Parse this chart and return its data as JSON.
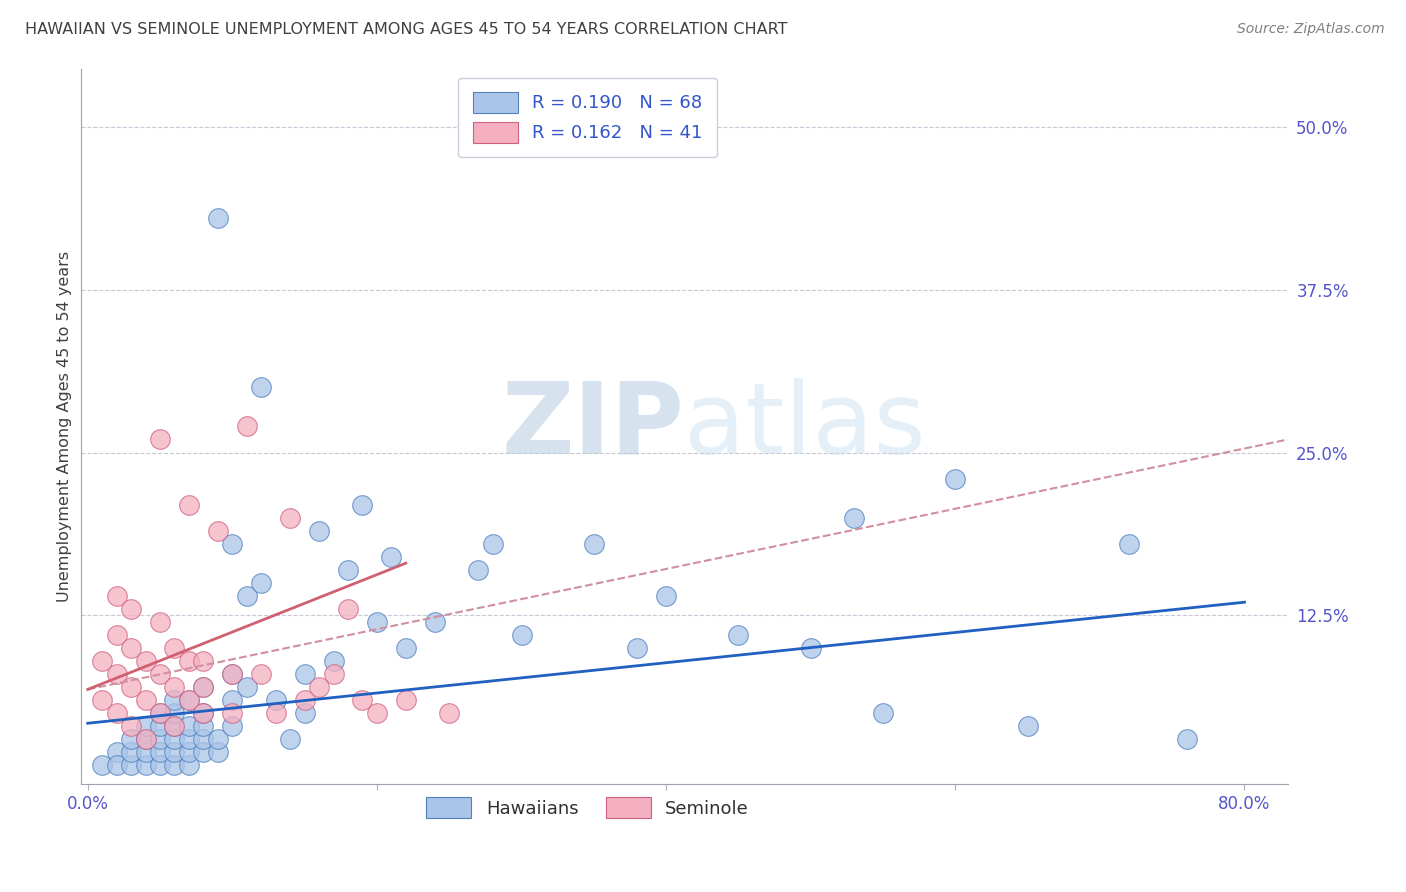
{
  "title": "HAWAIIAN VS SEMINOLE UNEMPLOYMENT AMONG AGES 45 TO 54 YEARS CORRELATION CHART",
  "source": "Source: ZipAtlas.com",
  "ylabel": "Unemployment Among Ages 45 to 54 years",
  "xlim": [
    -0.005,
    0.83
  ],
  "ylim": [
    -0.005,
    0.545
  ],
  "xtick_vals": [
    0.0,
    0.2,
    0.4,
    0.6,
    0.8
  ],
  "xtick_labels": [
    "0.0%",
    "",
    "",
    "",
    "80.0%"
  ],
  "ytick_vals": [
    0.5,
    0.375,
    0.25,
    0.125
  ],
  "ytick_labels": [
    "50.0%",
    "37.5%",
    "25.0%",
    "12.5%"
  ],
  "hawaiian_color": "#aac5e8",
  "hawaiian_edge_color": "#5080c0",
  "seminole_color": "#f4b0c0",
  "seminole_edge_color": "#d06080",
  "hawaiian_line_color": "#2060c0",
  "seminole_line_color": "#d06070",
  "seminole_dashed_color": "#d090a0",
  "title_color": "#404040",
  "source_color": "#808080",
  "watermark_color": "#ccdaee",
  "axis_label_color": "#404040",
  "tick_label_color": "#5555cc",
  "grid_color": "#c8c8d8",
  "legend_text_color": "#3355cc",
  "hawaiian_R": 0.19,
  "hawaiian_N": 68,
  "seminole_R": 0.162,
  "seminole_N": 41,
  "hawaiian_trend": [
    0.0,
    0.8,
    0.042,
    0.135
  ],
  "seminole_solid_trend": [
    0.0,
    0.22,
    0.068,
    0.165
  ],
  "seminole_dashed_trend": [
    0.0,
    0.83,
    0.068,
    0.26
  ],
  "hawaiian_x": [
    0.01,
    0.02,
    0.02,
    0.03,
    0.03,
    0.03,
    0.04,
    0.04,
    0.04,
    0.04,
    0.05,
    0.05,
    0.05,
    0.05,
    0.05,
    0.06,
    0.06,
    0.06,
    0.06,
    0.06,
    0.06,
    0.07,
    0.07,
    0.07,
    0.07,
    0.07,
    0.08,
    0.08,
    0.08,
    0.08,
    0.08,
    0.09,
    0.09,
    0.09,
    0.1,
    0.1,
    0.1,
    0.1,
    0.11,
    0.11,
    0.12,
    0.12,
    0.13,
    0.14,
    0.15,
    0.15,
    0.16,
    0.17,
    0.18,
    0.19,
    0.2,
    0.21,
    0.22,
    0.24,
    0.27,
    0.28,
    0.3,
    0.35,
    0.38,
    0.4,
    0.45,
    0.5,
    0.53,
    0.55,
    0.6,
    0.65,
    0.72,
    0.76
  ],
  "hawaiian_y": [
    0.01,
    0.02,
    0.01,
    0.01,
    0.02,
    0.03,
    0.01,
    0.02,
    0.03,
    0.04,
    0.01,
    0.02,
    0.03,
    0.04,
    0.05,
    0.01,
    0.02,
    0.03,
    0.04,
    0.05,
    0.06,
    0.01,
    0.02,
    0.03,
    0.04,
    0.06,
    0.02,
    0.03,
    0.04,
    0.05,
    0.07,
    0.02,
    0.03,
    0.43,
    0.04,
    0.06,
    0.08,
    0.18,
    0.07,
    0.14,
    0.15,
    0.3,
    0.06,
    0.03,
    0.05,
    0.08,
    0.19,
    0.09,
    0.16,
    0.21,
    0.12,
    0.17,
    0.1,
    0.12,
    0.16,
    0.18,
    0.11,
    0.18,
    0.1,
    0.14,
    0.11,
    0.1,
    0.2,
    0.05,
    0.23,
    0.04,
    0.18,
    0.03
  ],
  "seminole_x": [
    0.01,
    0.01,
    0.02,
    0.02,
    0.02,
    0.02,
    0.03,
    0.03,
    0.03,
    0.03,
    0.04,
    0.04,
    0.04,
    0.05,
    0.05,
    0.05,
    0.05,
    0.06,
    0.06,
    0.06,
    0.07,
    0.07,
    0.07,
    0.08,
    0.08,
    0.08,
    0.09,
    0.1,
    0.1,
    0.11,
    0.12,
    0.13,
    0.14,
    0.15,
    0.16,
    0.17,
    0.18,
    0.19,
    0.2,
    0.22,
    0.25
  ],
  "seminole_y": [
    0.06,
    0.09,
    0.05,
    0.08,
    0.11,
    0.14,
    0.04,
    0.07,
    0.1,
    0.13,
    0.03,
    0.06,
    0.09,
    0.05,
    0.08,
    0.12,
    0.26,
    0.04,
    0.07,
    0.1,
    0.06,
    0.21,
    0.09,
    0.05,
    0.07,
    0.09,
    0.19,
    0.05,
    0.08,
    0.27,
    0.08,
    0.05,
    0.2,
    0.06,
    0.07,
    0.08,
    0.13,
    0.06,
    0.05,
    0.06,
    0.05
  ],
  "legend_bottom": [
    "Hawaiians",
    "Seminole"
  ]
}
